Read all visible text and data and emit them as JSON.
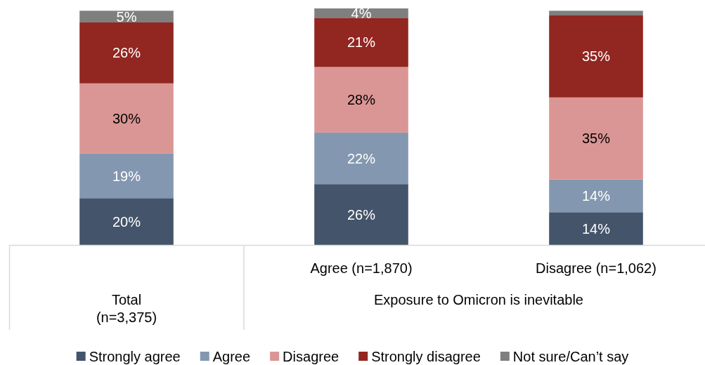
{
  "chart_data": {
    "type": "bar",
    "stacked": true,
    "legend": "bottom",
    "categories": [
      null,
      "Agree (n=1,870)",
      "Disagree (n=1,062)"
    ],
    "annotations": [
      "Total (n=3,375)",
      "Exposure to Omicron is inevitable"
    ],
    "series": [
      {
        "name": "Strongly agree",
        "color": "#44546a",
        "values": [
          20,
          26,
          14
        ],
        "value_labels": [
          "20%",
          "26%",
          "14%"
        ]
      },
      {
        "name": "Agree",
        "color": "#8497b0",
        "values": [
          19,
          22,
          14
        ],
        "value_labels": [
          "19%",
          "22%",
          "14%"
        ]
      },
      {
        "name": "Disagree",
        "color": "#da9694",
        "values": [
          30,
          28,
          35
        ],
        "value_labels": [
          "30%",
          "28%",
          "35%"
        ]
      },
      {
        "name": "Strongly disagree",
        "color": "#922620",
        "values": [
          26,
          21,
          35
        ],
        "value_labels": [
          "26%",
          "21%",
          "35%"
        ]
      },
      {
        "name": "Not sure/Can’t say",
        "color": "#7f7f7f",
        "values": [
          5,
          4,
          2
        ],
        "value_labels": [
          "5%",
          "4%",
          null
        ]
      }
    ]
  }
}
